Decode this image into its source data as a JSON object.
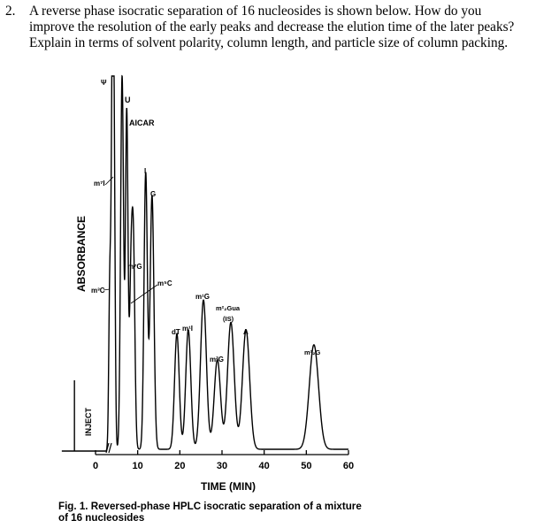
{
  "question": {
    "number": "2.",
    "lines": [
      "A reverse phase isocratic separation of 16 nucleosides is shown below. How do you",
      "improve the resolution of the early peaks and decrease the elution time of the later peaks?",
      "Explain in terms of solvent polarity, column length, and particle size of column packing."
    ]
  },
  "figure": {
    "caption_lines": [
      "Fig. 1. Reversed-phase HPLC isocratic separation of a mixture",
      "of 16 nucleosides"
    ]
  },
  "chart_data": {
    "type": "line",
    "title": "Fig. 1. Reversed-phase HPLC isocratic separation of a mixture of 16 nucleosides",
    "xlabel": "TIME (MIN)",
    "ylabel": "ABSORBANCE",
    "annotation_inject": "INJECT",
    "xlim": [
      0,
      60
    ],
    "xticks": [
      0,
      10,
      20,
      30,
      40,
      50,
      60
    ],
    "grid": false,
    "legend": null,
    "y_units": "relative absorbance (0 = baseline, 1 = top of plot)",
    "peaks": [
      {
        "label": "Ψ",
        "time": 4.0,
        "height": 1.0,
        "width": 0.25
      },
      {
        "label": "m³C",
        "time": 3.4,
        "height": 0.45,
        "width": 0.25
      },
      {
        "label": "m⁷I",
        "time": 4.4,
        "height": 0.74,
        "width": 0.25
      },
      {
        "label": "U",
        "time": 6.3,
        "height": 1.0,
        "width": 0.35
      },
      {
        "label": "AICAR",
        "time": 7.4,
        "height": 0.9,
        "width": 0.3
      },
      {
        "label": "m⁷G",
        "time": 9.0,
        "height": 0.5,
        "width": 0.35
      },
      {
        "label": "m⁵C",
        "time": 8.4,
        "height": 0.43,
        "width": 0.35
      },
      {
        "label": "I",
        "time": 11.9,
        "height": 0.74,
        "width": 0.4
      },
      {
        "label": "G",
        "time": 13.4,
        "height": 0.68,
        "width": 0.45
      },
      {
        "label": "dT",
        "time": 19.3,
        "height": 0.31,
        "width": 0.55
      },
      {
        "label": "m¹I",
        "time": 22.0,
        "height": 0.32,
        "width": 0.6
      },
      {
        "label": "m¹G",
        "time": 25.6,
        "height": 0.4,
        "width": 0.7
      },
      {
        "label": "m²G",
        "time": 28.9,
        "height": 0.24,
        "width": 0.75
      },
      {
        "label": "m²₂Gua (IS)",
        "time": 32.1,
        "height": 0.34,
        "width": 0.8
      },
      {
        "label": "A",
        "time": 35.7,
        "height": 0.32,
        "width": 0.85
      },
      {
        "label": "m²₂G",
        "time": 51.8,
        "height": 0.28,
        "width": 1.1
      }
    ],
    "inject_time": -5.0
  },
  "labels": {
    "psi": "Ψ",
    "U": "U",
    "AICAR": "AICAR",
    "m7I": "m⁷I",
    "I": "I",
    "G": "G",
    "m7G": "m⁷G",
    "m3C": "m³C",
    "m5C": "m⁵C",
    "m1G": "m¹G",
    "m22Gua": "m²₂Gua",
    "IS": "(IS)",
    "dT": "dT",
    "m1I": "m¹I",
    "A": "A",
    "m2G": "m²G",
    "m22G": "m²₂G"
  }
}
